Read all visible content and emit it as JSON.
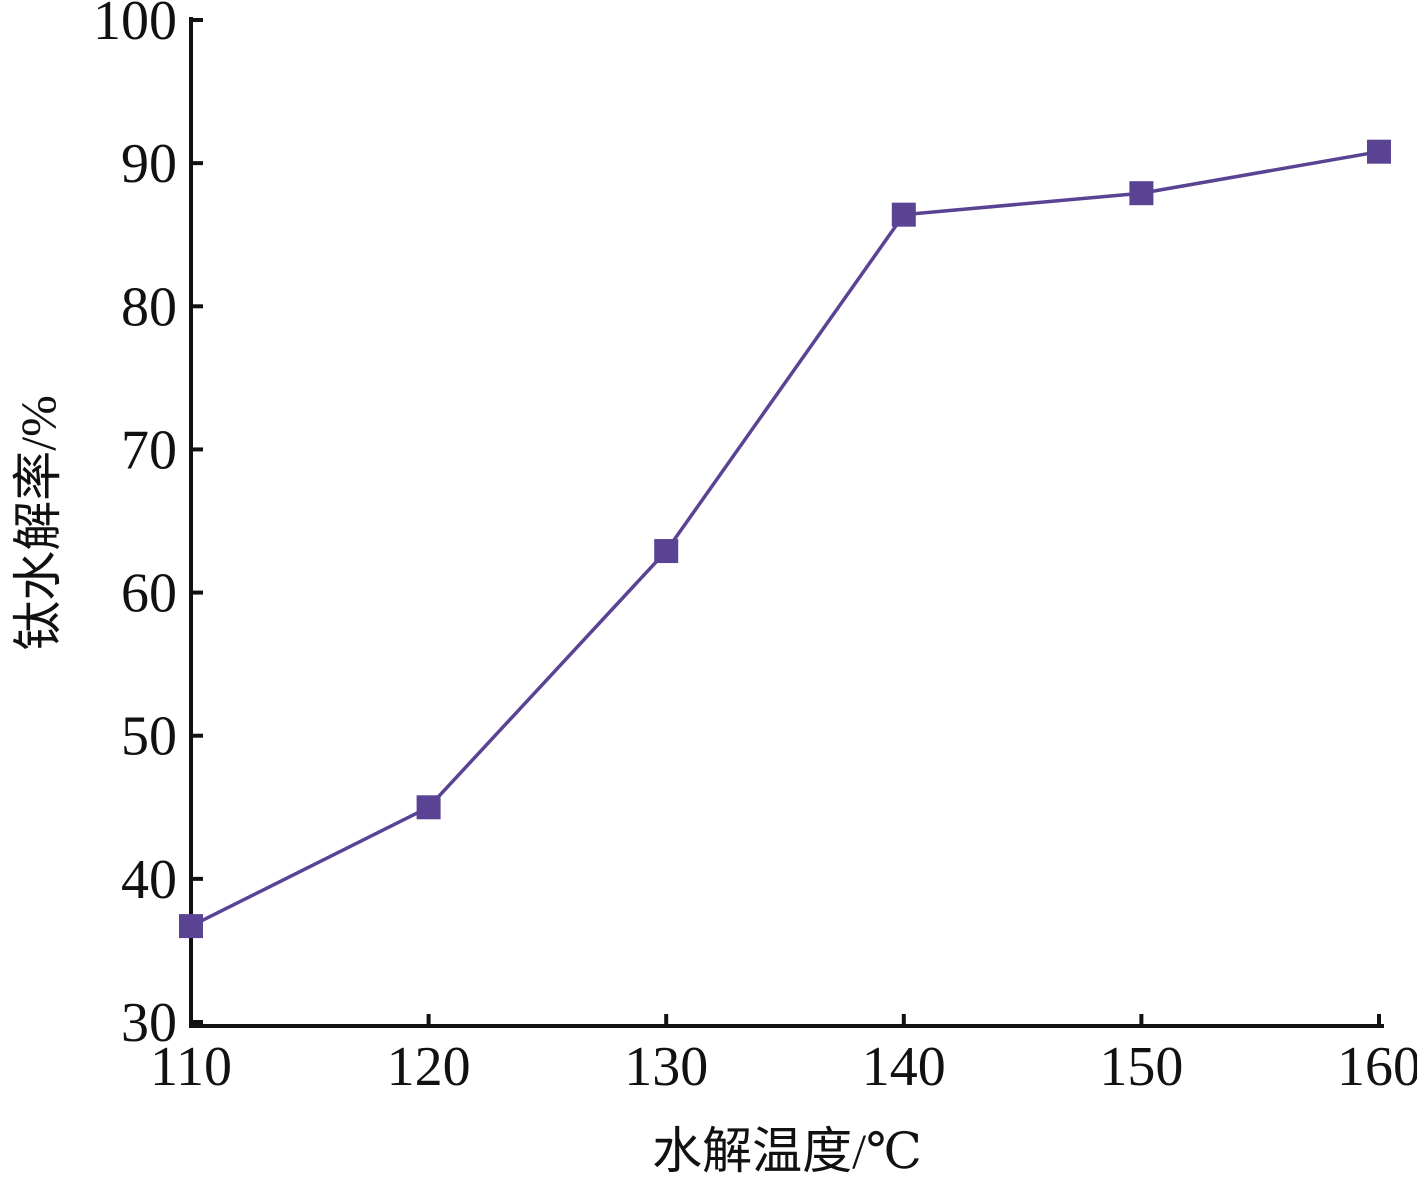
{
  "chart_data": {
    "type": "line",
    "title": "",
    "xlabel": "水解温度/℃",
    "ylabel": "钛水解率/%",
    "x": [
      110,
      120,
      130,
      140,
      150,
      160
    ],
    "series": [
      {
        "values": [
          36.7,
          45.0,
          62.9,
          86.4,
          87.9,
          90.8
        ]
      }
    ],
    "xlim": [
      110,
      160
    ],
    "ylim": [
      30,
      100
    ],
    "xticks": [
      "110",
      "120",
      "130",
      "140",
      "150",
      "160"
    ],
    "yticks": [
      "30",
      "40",
      "50",
      "60",
      "70",
      "80",
      "90",
      "100"
    ],
    "marker": "square",
    "grid": false,
    "legend": "none"
  },
  "colors": {
    "series": "#5b4394",
    "axis": "#111111"
  }
}
